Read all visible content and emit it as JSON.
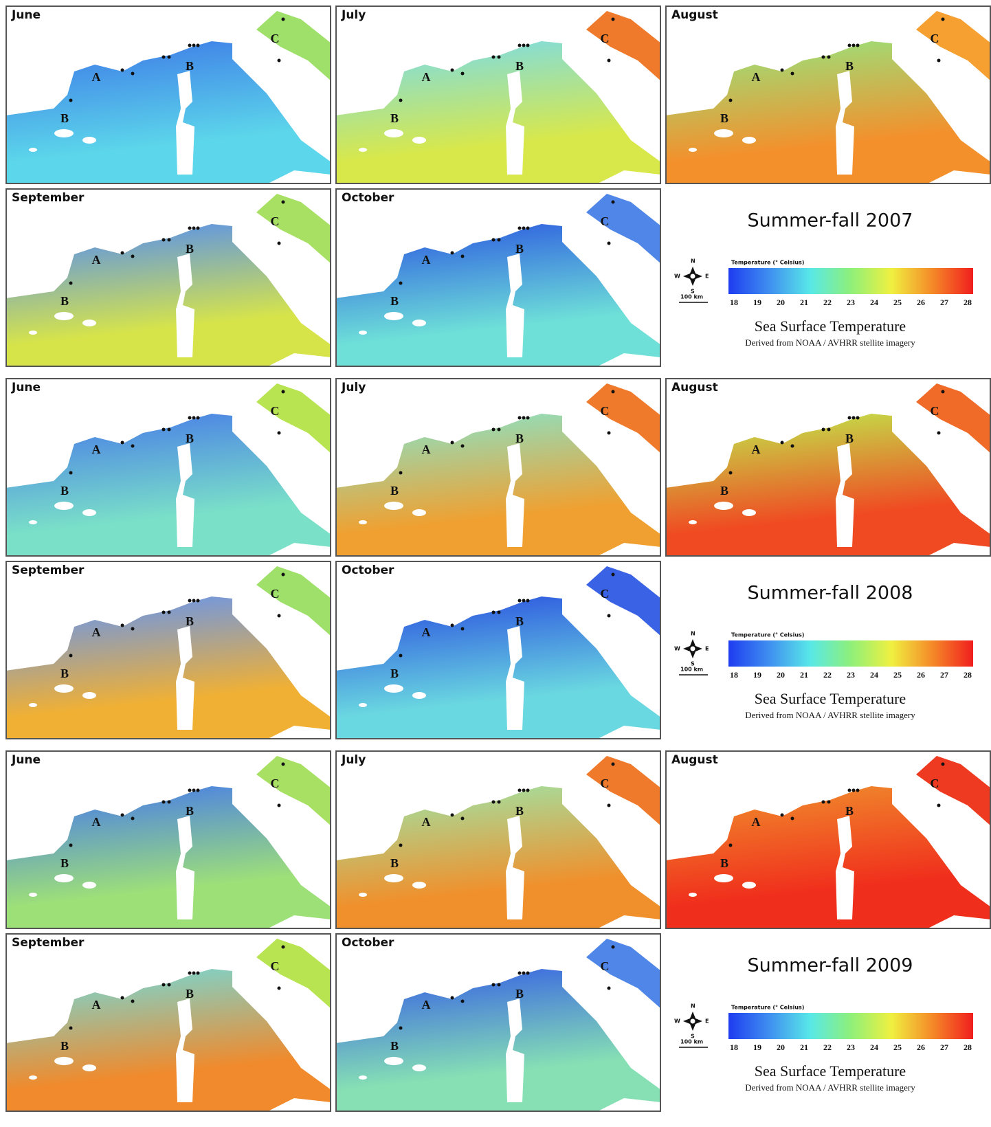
{
  "blocks": [
    {
      "title": "Summer-fall 2007",
      "panels": [
        {
          "month": "June",
          "markers": [
            "A",
            "B",
            "B",
            "C"
          ],
          "colors": [
            "#3f7fe8",
            "#5cd6ea",
            "#9ee06a"
          ]
        },
        {
          "month": "July",
          "markers": [
            "A",
            "B",
            "B",
            "C"
          ],
          "colors": [
            "#7fdce0",
            "#d8e84a",
            "#f07a2c"
          ]
        },
        {
          "month": "August",
          "markers": [
            "A",
            "B",
            "B",
            "C"
          ],
          "colors": [
            "#9be07a",
            "#f3902c",
            "#f5a030"
          ]
        },
        {
          "month": "September",
          "markers": [
            "A",
            "B",
            "B",
            "C"
          ],
          "colors": [
            "#5a92ea",
            "#d6e44a",
            "#a8e064"
          ]
        },
        {
          "month": "October",
          "markers": [
            "A",
            "B",
            "B",
            "C"
          ],
          "colors": [
            "#2f5fe0",
            "#6ee0d8",
            "#4f86e8"
          ]
        }
      ]
    },
    {
      "title": "Summer-fall 2008",
      "panels": [
        {
          "month": "June",
          "markers": [
            "A",
            "B",
            "B",
            "C"
          ],
          "colors": [
            "#4a80e6",
            "#7ae0c8",
            "#b8e452"
          ]
        },
        {
          "month": "July",
          "markers": [
            "A",
            "B",
            "B",
            "C"
          ],
          "colors": [
            "#8ee0c0",
            "#f0a030",
            "#f07a2c"
          ]
        },
        {
          "month": "August",
          "markers": [
            "A",
            "B",
            "B",
            "C"
          ],
          "colors": [
            "#c2e24a",
            "#f04a22",
            "#f06a28"
          ]
        },
        {
          "month": "September",
          "markers": [
            "A",
            "B",
            "B",
            "C"
          ],
          "colors": [
            "#6a96ea",
            "#f0b034",
            "#9ee06a"
          ]
        },
        {
          "month": "October",
          "markers": [
            "A",
            "B",
            "B",
            "C"
          ],
          "colors": [
            "#2d55e0",
            "#6ad8e0",
            "#3a62e4"
          ]
        }
      ]
    },
    {
      "title": "Summer-fall 2009",
      "panels": [
        {
          "month": "June",
          "markers": [
            "A",
            "B",
            "B",
            "C"
          ],
          "colors": [
            "#4a80e6",
            "#9ee078",
            "#a8e064"
          ]
        },
        {
          "month": "July",
          "markers": [
            "A",
            "B",
            "B",
            "C"
          ],
          "colors": [
            "#a2e0a0",
            "#f0902c",
            "#f07a2c"
          ]
        },
        {
          "month": "August",
          "markers": [
            "A",
            "B",
            "B",
            "C"
          ],
          "colors": [
            "#f08a2c",
            "#f02e1c",
            "#ee3a20"
          ]
        },
        {
          "month": "September",
          "markers": [
            "A",
            "B",
            "B",
            "C"
          ],
          "colors": [
            "#7ad6d0",
            "#f08a2c",
            "#b8e452"
          ]
        },
        {
          "month": "October",
          "markers": [
            "A",
            "B",
            "B",
            "C"
          ],
          "colors": [
            "#3a66e2",
            "#86e0b4",
            "#4f86e8"
          ]
        }
      ]
    }
  ],
  "legend": {
    "colorbar_title": "Temperature (° Celsius)",
    "ticks": [
      18,
      19,
      20,
      21,
      22,
      23,
      24,
      25,
      26,
      27,
      28
    ],
    "colors": [
      "#1e3cf0",
      "#3f8ff0",
      "#58e8e8",
      "#8ef07a",
      "#f0f040",
      "#f58a28",
      "#f01e1e"
    ],
    "title": "Sea Surface Temperature",
    "source": "Derived from NOAA / AVHRR stellite imagery",
    "compass": [
      "N",
      "S",
      "E",
      "W"
    ],
    "scale": "100 km"
  }
}
